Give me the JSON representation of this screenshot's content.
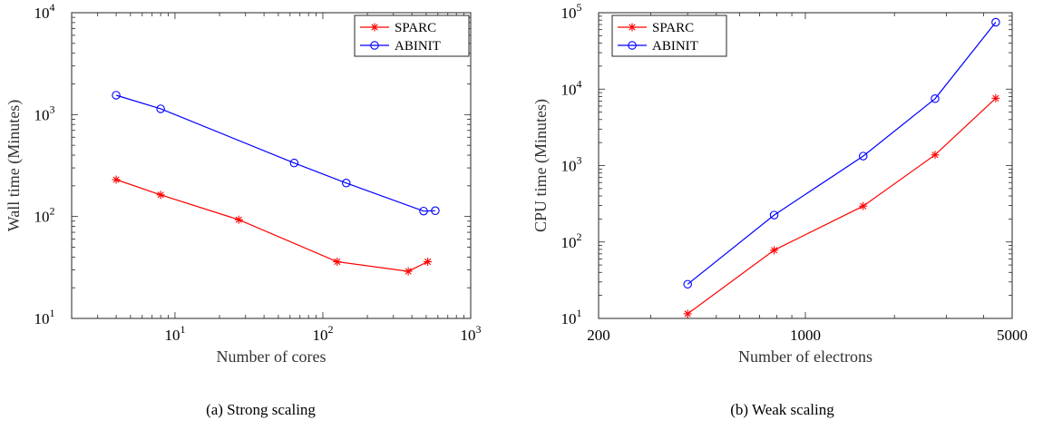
{
  "chart_data": [
    {
      "type": "line",
      "xscale": "log",
      "yscale": "log",
      "xlabel": "Number of cores",
      "ylabel": "Wall time (Minutes)",
      "xlim": [
        2,
        1000
      ],
      "ylim": [
        10,
        10000
      ],
      "xticks": [
        {
          "value": 10,
          "base": "10",
          "exp": "1"
        },
        {
          "value": 100,
          "base": "10",
          "exp": "2"
        },
        {
          "value": 1000,
          "base": "10",
          "exp": "3"
        }
      ],
      "yticks": [
        {
          "value": 10,
          "base": "10",
          "exp": "1"
        },
        {
          "value": 100,
          "base": "10",
          "exp": "2"
        },
        {
          "value": 1000,
          "base": "10",
          "exp": "3"
        },
        {
          "value": 10000,
          "base": "10",
          "exp": "4"
        }
      ],
      "legend_position": "top-right",
      "series": [
        {
          "name": "SPARC",
          "color": "#ff0000",
          "marker": "asterisk",
          "x": [
            4,
            8,
            27,
            125,
            378,
            512
          ],
          "y": [
            230,
            163,
            93,
            36,
            29,
            36
          ]
        },
        {
          "name": "ABINIT",
          "color": "#0000ff",
          "marker": "circle",
          "x": [
            4,
            8,
            64,
            144,
            480,
            576
          ],
          "y": [
            1550,
            1140,
            335,
            213,
            113,
            114
          ]
        }
      ],
      "caption": "(a) Strong scaling"
    },
    {
      "type": "line",
      "xscale": "log",
      "yscale": "log",
      "xlabel": "Number of electrons",
      "ylabel": "CPU time (Minutes)",
      "xlim": [
        200,
        5000
      ],
      "ylim": [
        10,
        100000
      ],
      "xticks": [
        {
          "value": 200,
          "label": "200"
        },
        {
          "value": 1000,
          "label": "1000"
        },
        {
          "value": 5000,
          "label": "5000"
        }
      ],
      "yticks": [
        {
          "value": 10,
          "base": "10",
          "exp": "1"
        },
        {
          "value": 100,
          "base": "10",
          "exp": "2"
        },
        {
          "value": 1000,
          "base": "10",
          "exp": "3"
        },
        {
          "value": 10000,
          "base": "10",
          "exp": "4"
        },
        {
          "value": 100000,
          "base": "10",
          "exp": "5"
        }
      ],
      "legend_position": "top-left",
      "series": [
        {
          "name": "SPARC",
          "color": "#ff0000",
          "marker": "asterisk",
          "x": [
            400,
            784,
            1568,
            2744,
            4400
          ],
          "y": [
            11.5,
            78,
            295,
            1380,
            7600
          ]
        },
        {
          "name": "ABINIT",
          "color": "#0000ff",
          "marker": "circle",
          "x": [
            400,
            784,
            1568,
            2744,
            4400
          ],
          "y": [
            28,
            225,
            1330,
            7500,
            75000
          ]
        }
      ],
      "caption": "(b) Weak scaling"
    }
  ]
}
